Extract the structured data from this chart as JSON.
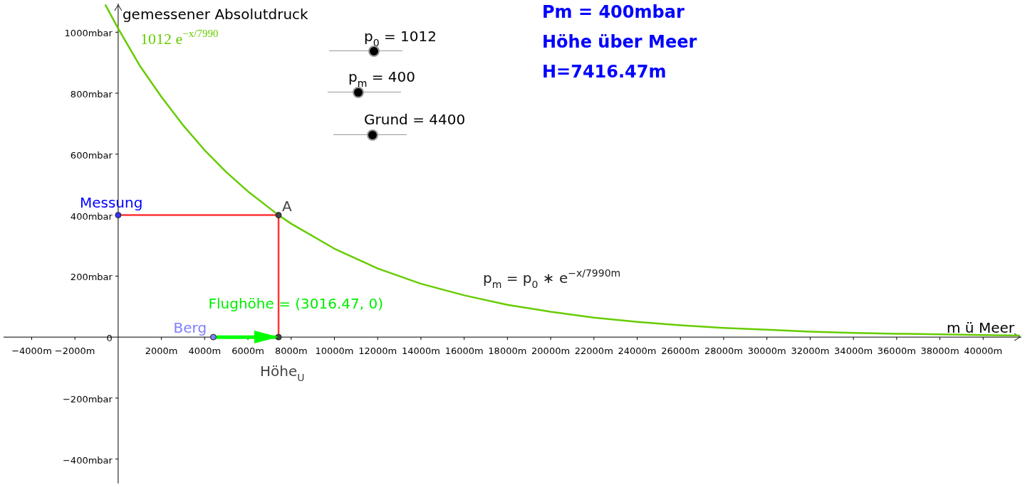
{
  "chart_data": {
    "type": "line",
    "xlabel": "m ü Meer",
    "ylabel": "gemessener Absolutdruck",
    "xlim": [
      -5300,
      41770
    ],
    "ylim": [
      -480,
      1094
    ],
    "xticks": [
      {
        "value": -4000,
        "label": "−4000m"
      },
      {
        "value": -2000,
        "label": "−2000m"
      },
      {
        "value": 0,
        "label": null
      },
      {
        "value": 2000,
        "label": "2000m"
      },
      {
        "value": 4000,
        "label": "4000m"
      },
      {
        "value": 6000,
        "label": "6000m"
      },
      {
        "value": 8000,
        "label": "8000m"
      },
      {
        "value": 10000,
        "label": "10000m"
      },
      {
        "value": 12000,
        "label": "12000m"
      },
      {
        "value": 14000,
        "label": "14000m"
      },
      {
        "value": 16000,
        "label": "16000m"
      },
      {
        "value": 18000,
        "label": "18000m"
      },
      {
        "value": 20000,
        "label": "20000m"
      },
      {
        "value": 22000,
        "label": "22000m"
      },
      {
        "value": 24000,
        "label": "24000m"
      },
      {
        "value": 26000,
        "label": "26000m"
      },
      {
        "value": 28000,
        "label": "28000m"
      },
      {
        "value": 30000,
        "label": "30000m"
      },
      {
        "value": 32000,
        "label": "32000m"
      },
      {
        "value": 34000,
        "label": "34000m"
      },
      {
        "value": 36000,
        "label": "36000m"
      },
      {
        "value": 38000,
        "label": "38000m"
      },
      {
        "value": 40000,
        "label": "40000m"
      }
    ],
    "yticks": [
      {
        "value": -400,
        "label": "−400mbar"
      },
      {
        "value": -200,
        "label": "−200mbar"
      },
      {
        "value": 0,
        "label": "0"
      },
      {
        "value": 200,
        "label": "200mbar"
      },
      {
        "value": 400,
        "label": "400mbar"
      },
      {
        "value": 600,
        "label": "600mbar"
      },
      {
        "value": 800,
        "label": "800mbar"
      },
      {
        "value": 1000,
        "label": "1000mbar"
      }
    ],
    "grid": false,
    "legend": false,
    "marker": "none",
    "line_style": "solid",
    "series": [
      {
        "type": "line",
        "color": "#66cc00",
        "x": [
          -600,
          0,
          1000,
          2000,
          3000,
          4000,
          5000,
          6000,
          7416.47,
          8000,
          10000,
          12000,
          14000,
          16000,
          18000,
          20000,
          22000,
          24000,
          26000,
          28000,
          30000,
          32000,
          34000,
          36000,
          38000,
          40000,
          41700
        ],
        "values": [
          1091,
          1012,
          890,
          788,
          695,
          613,
          541,
          478,
          400,
          372,
          290,
          225,
          175,
          137,
          106,
          83,
          64,
          50,
          39,
          30,
          24,
          18,
          14,
          11,
          9,
          7,
          5
        ]
      },
      {
        "type": "line",
        "color": "#ff3333",
        "x": [
          0,
          7416.47
        ],
        "values": [
          400,
          400
        ]
      },
      {
        "type": "line",
        "color": "#ff3333",
        "x": [
          7416.47,
          7416.47
        ],
        "values": [
          400,
          0
        ]
      },
      {
        "type": "line",
        "color": "#00ff00",
        "x": [
          4400,
          7416.47
        ],
        "values": [
          0,
          0
        ]
      },
      {
        "type": "scatter",
        "marker": "circle",
        "x": [
          0,
          7416.47,
          7416.47,
          4400
        ],
        "values": [
          400,
          400,
          0,
          0
        ],
        "colors": [
          "#3333ff",
          "#444444",
          "#444444",
          "#7f7fff"
        ]
      }
    ],
    "annotations": [
      {
        "text": "Messung",
        "x": 0,
        "y": 400
      },
      {
        "text": "A",
        "x": 7416.47,
        "y": 400
      },
      {
        "text": "Höhe$_{U}$",
        "x": 7416.47,
        "y": 0
      },
      {
        "text": "Berg",
        "x": 4400,
        "y": 0
      },
      {
        "text": "Flughöhe = (3016.47, 0)",
        "x": 4400,
        "y": 0
      },
      "1012 e$^{−x/7990}$",
      "p$_{m}$ = p$_{0}$ ∗ e$^{−x/7990m}$",
      "p$_{0}$ = 1012",
      "p$_{m}$ = 400",
      "Grund = 4400",
      "Pm = 400mbar",
      "Höhe über Meer",
      "H=7416.47m"
    ]
  }
}
